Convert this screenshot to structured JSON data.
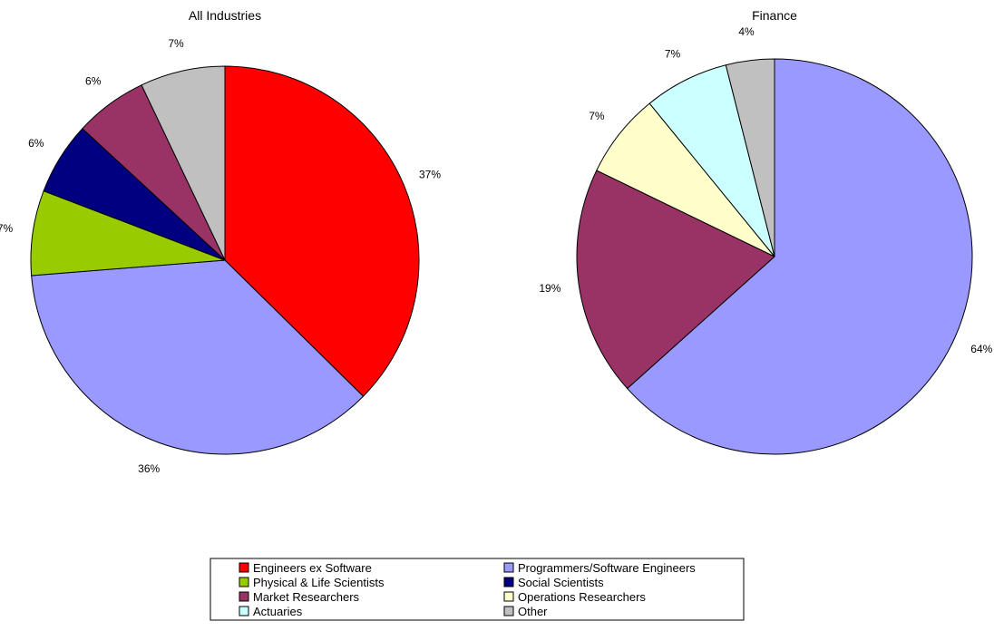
{
  "chart_data": [
    {
      "type": "pie",
      "title": "All Industries",
      "categories": [
        "Engineers ex Software",
        "Programmers/Software Engineers",
        "Physical & Life Scientists",
        "Social Scientists",
        "Market Researchers",
        "Other"
      ],
      "values": [
        37,
        36,
        7,
        6,
        6,
        7
      ],
      "labels": [
        "37%",
        "36%",
        "7%",
        "6%",
        "6%",
        "7%"
      ],
      "colors": [
        "#ff0000",
        "#9999ff",
        "#99cc00",
        "#000080",
        "#993366",
        "#c0c0c0"
      ]
    },
    {
      "type": "pie",
      "title": "Finance",
      "categories": [
        "Programmers/Software Engineers",
        "Market Researchers",
        "Operations Researchers",
        "Actuaries",
        "Other"
      ],
      "values": [
        64,
        19,
        7,
        7,
        4
      ],
      "labels": [
        "64%",
        "19%",
        "7%",
        "7%",
        "4%"
      ],
      "colors": [
        "#9999ff",
        "#993366",
        "#ffffcc",
        "#ccffff",
        "#c0c0c0"
      ]
    }
  ],
  "legend": {
    "placement": "bottom",
    "items": [
      {
        "label": "Engineers ex Software",
        "color": "#ff0000"
      },
      {
        "label": "Programmers/Software Engineers",
        "color": "#9999ff"
      },
      {
        "label": "Physical & Life Scientists",
        "color": "#99cc00"
      },
      {
        "label": "Social Scientists",
        "color": "#000080"
      },
      {
        "label": "Market Researchers",
        "color": "#993366"
      },
      {
        "label": "Operations Researchers",
        "color": "#ffffcc"
      },
      {
        "label": "Actuaries",
        "color": "#ccffff"
      },
      {
        "label": "Other",
        "color": "#c0c0c0"
      }
    ]
  }
}
